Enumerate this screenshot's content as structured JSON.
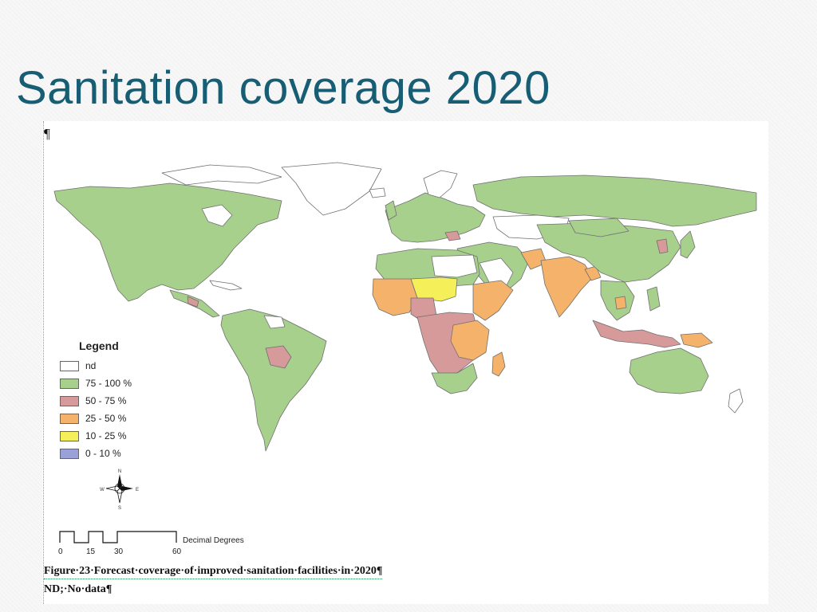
{
  "slide": {
    "title": "Sanitation coverage 2020"
  },
  "document": {
    "pilcrow": "¶",
    "caption": "Figure·23·Forecast·coverage·of·improved·sanitation·facilities·in·2020¶",
    "note": "ND;·No·data¶"
  },
  "map": {
    "legend": {
      "title": "Legend",
      "items": [
        {
          "label": "nd",
          "color": "#ffffff"
        },
        {
          "label": "75 - 100 %",
          "color": "#a8d08d"
        },
        {
          "label": "50 - 75 %",
          "color": "#d79a9a"
        },
        {
          "label": "25 - 50 %",
          "color": "#f4b26a"
        },
        {
          "label": "10 - 25 %",
          "color": "#f5f05a"
        },
        {
          "label": "0 - 10 %",
          "color": "#9aa0d8"
        }
      ]
    },
    "compass": {
      "n": "N",
      "s": "S",
      "e": "E",
      "w": "W"
    },
    "scale": {
      "ticks": [
        "0",
        "15",
        "30",
        "60"
      ],
      "unit": "Decimal Degrees"
    },
    "regions": [
      {
        "name": "north-america",
        "class": "75 - 100 %"
      },
      {
        "name": "greenland",
        "class": "nd"
      },
      {
        "name": "south-america",
        "class": "75 - 100 %"
      },
      {
        "name": "bolivia",
        "class": "50 - 75 %"
      },
      {
        "name": "europe",
        "class": "75 - 100 %"
      },
      {
        "name": "russia",
        "class": "75 - 100 %"
      },
      {
        "name": "north-africa",
        "class": "75 - 100 %"
      },
      {
        "name": "sahel",
        "class": "10 - 25 %"
      },
      {
        "name": "central-africa",
        "class": "50 - 75 %"
      },
      {
        "name": "east-africa",
        "class": "25 - 50 %"
      },
      {
        "name": "southern-africa",
        "class": "75 - 100 %"
      },
      {
        "name": "madagascar",
        "class": "25 - 50 %"
      },
      {
        "name": "middle-east",
        "class": "75 - 100 %"
      },
      {
        "name": "india",
        "class": "25 - 50 %"
      },
      {
        "name": "china",
        "class": "75 - 100 %"
      },
      {
        "name": "southeast-asia",
        "class": "75 - 100 %"
      },
      {
        "name": "indonesia",
        "class": "50 - 75 %"
      },
      {
        "name": "papua-new-guinea",
        "class": "25 - 50 %"
      },
      {
        "name": "australia",
        "class": "75 - 100 %"
      }
    ]
  }
}
